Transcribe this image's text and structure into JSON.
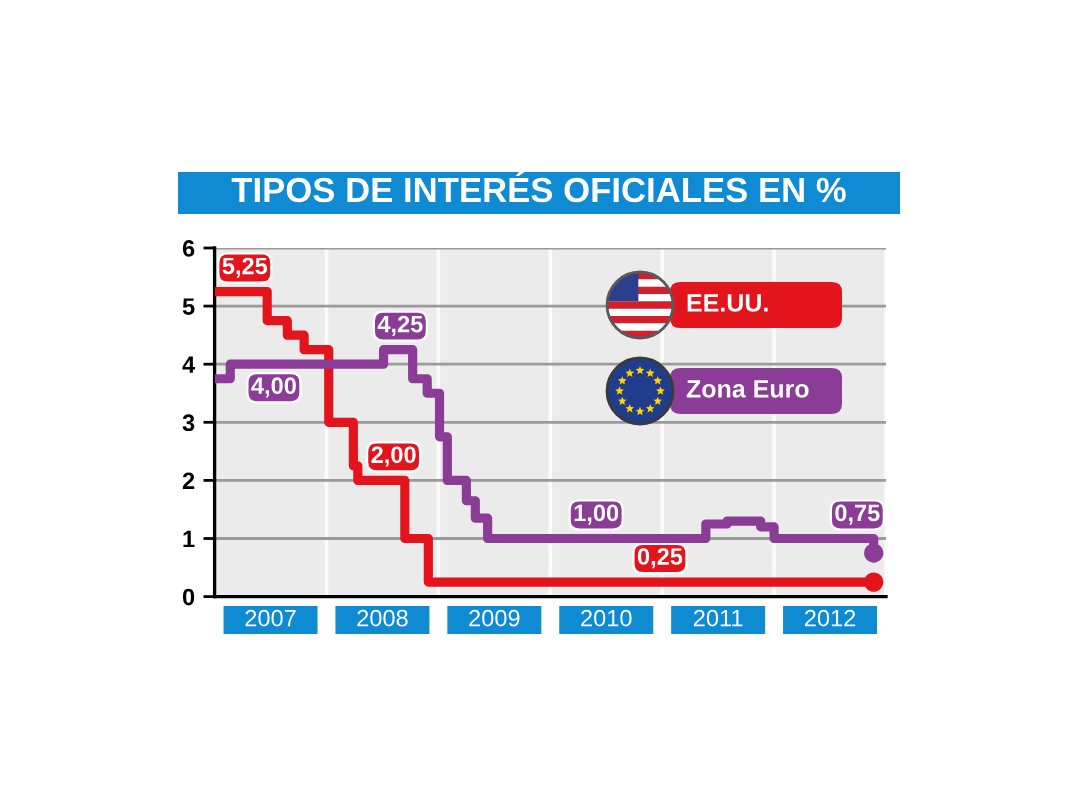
{
  "chart_data": {
    "type": "step",
    "title": "TIPOS DE INTERÉS OFICIALES EN %",
    "series": [
      {
        "name": "EE.UU.",
        "color": "#e3141b",
        "x": [
          2007.0,
          2007.47,
          2007.65,
          2007.8,
          2008.02,
          2008.24,
          2008.28,
          2008.7,
          2008.91,
          2012.89
        ],
        "values": [
          5.25,
          4.75,
          4.5,
          4.25,
          3.0,
          2.25,
          2.0,
          1.0,
          0.25,
          0.25
        ]
      },
      {
        "name": "Zona Euro",
        "color": "#8b3c97",
        "x": [
          2007.0,
          2007.14,
          2008.51,
          2008.77,
          2008.9,
          2009.01,
          2009.08,
          2009.25,
          2009.33,
          2009.44,
          2011.39,
          2011.58,
          2011.88,
          2012.0,
          2012.89
        ],
        "values": [
          3.75,
          4.0,
          4.25,
          3.75,
          3.5,
          2.75,
          2.0,
          1.65,
          1.35,
          1.0,
          1.25,
          1.3,
          1.2,
          1.0,
          0.75
        ]
      },
      {
        "type": "scatter",
        "color": "#e3141b",
        "x": [
          2012.89
        ],
        "values": [
          0.25
        ]
      },
      {
        "type": "scatter",
        "color": "#8b3c97",
        "x": [
          2012.89
        ],
        "values": [
          0.75
        ]
      }
    ],
    "xlim": [
      2007,
      2013
    ],
    "xticks": [
      {
        "value": 2007,
        "label": null
      },
      {
        "value": 2007.5,
        "label": "2007"
      },
      {
        "value": 2008,
        "label": null
      },
      {
        "value": 2008.5,
        "label": "2008"
      },
      {
        "value": 2009,
        "label": null
      },
      {
        "value": 2009.5,
        "label": "2009"
      },
      {
        "value": 2010,
        "label": null
      },
      {
        "value": 2010.5,
        "label": "2010"
      },
      {
        "value": 2011,
        "label": null
      },
      {
        "value": 2011.5,
        "label": "2011"
      },
      {
        "value": 2012,
        "label": null
      },
      {
        "value": 2012.5,
        "label": "2012"
      },
      {
        "value": 2013,
        "label": null
      }
    ],
    "ylim": [
      0,
      6
    ],
    "yticks": [
      0,
      1,
      2,
      3,
      4,
      5,
      6
    ],
    "grid": true,
    "legend": "top right",
    "annotations": [
      {
        "text": "5,25",
        "x": 2007.27,
        "y": 5.25
      },
      {
        "text": "4,00",
        "x": 2007.53,
        "y": 4.0
      },
      {
        "text": "4,25",
        "x": 2008.66,
        "y": 4.25
      },
      {
        "text": "2,00",
        "x": 2008.6,
        "y": 2.0
      },
      {
        "text": "1,00",
        "x": 2010.41,
        "y": 1.0
      },
      {
        "text": "0,25",
        "x": 2010.98,
        "y": 0.25
      },
      {
        "text": "0,75",
        "x": 2012.89,
        "y": 0.75
      }
    ]
  }
}
